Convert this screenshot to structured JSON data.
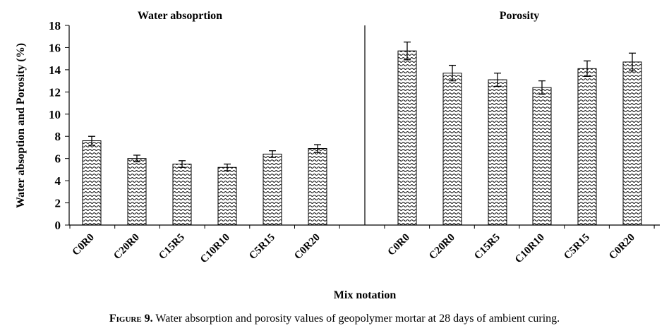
{
  "chart_data": {
    "type": "bar",
    "panels": [
      {
        "title": "Water absoprtion",
        "categories": [
          "C0R0",
          "C20R0",
          "C15R5",
          "C10R10",
          "C5R15",
          "C0R20"
        ],
        "values": [
          7.6,
          6.0,
          5.5,
          5.2,
          6.4,
          6.9
        ],
        "errors": [
          0.4,
          0.3,
          0.3,
          0.3,
          0.3,
          0.35
        ]
      },
      {
        "title": "Porosity",
        "categories": [
          "C0R0",
          "C20R0",
          "C15R5",
          "C10R10",
          "C5R15",
          "C0R20"
        ],
        "values": [
          15.7,
          13.7,
          13.1,
          12.4,
          14.1,
          14.7
        ],
        "errors": [
          0.8,
          0.7,
          0.6,
          0.6,
          0.7,
          0.8
        ]
      }
    ],
    "xlabel": "Mix notation",
    "ylabel": "Water absoption  and Porosity  (%)",
    "ylim": [
      0,
      18
    ],
    "yticks": [
      0,
      2,
      4,
      6,
      8,
      10,
      12,
      14,
      16,
      18
    ],
    "bar_pattern": "wavy-hatch",
    "grid": false,
    "legend": "none"
  },
  "caption": {
    "label": "Figure 9.",
    "text": " Water absorption and porosity values of geopolymer mortar at 28 days of ambient curing."
  }
}
